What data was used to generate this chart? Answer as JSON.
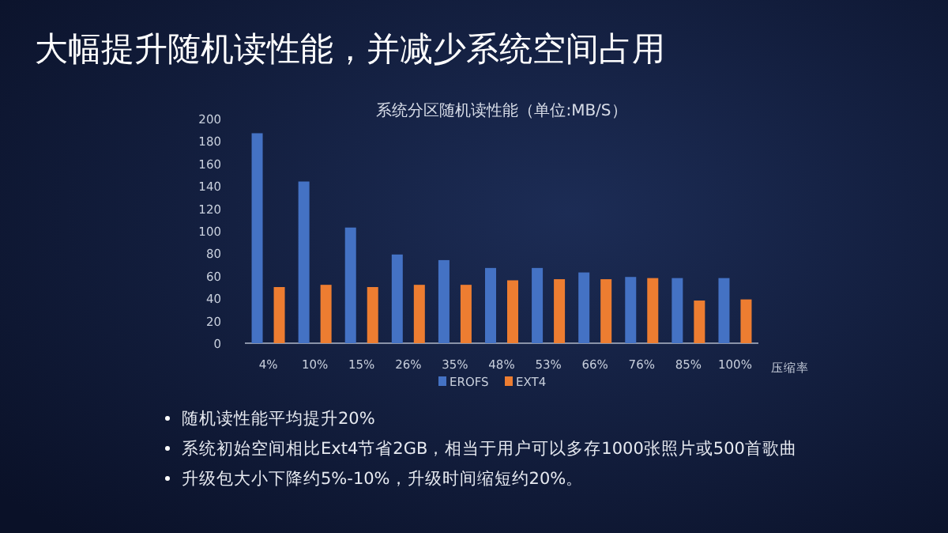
{
  "chart_data": {
    "type": "bar",
    "title": "大幅提升随机读性能，并减少系统空间占用",
    "subtitle": "系统分区随机读性能（单位:MB/S）",
    "xlabel": "压缩率",
    "categories": [
      "4%",
      "10%",
      "15%",
      "26%",
      "35%",
      "48%",
      "53%",
      "66%",
      "76%",
      "85%",
      "100%"
    ],
    "series": [
      {
        "name": "EROFS",
        "color": "#4472c4",
        "values": [
          187,
          144,
          103,
          79,
          74,
          67,
          67,
          63,
          59,
          58,
          58
        ]
      },
      {
        "name": "EXT4",
        "color": "#ed7d31",
        "values": [
          50,
          52,
          50,
          52,
          52,
          56,
          57,
          57,
          58,
          38,
          39
        ]
      }
    ],
    "ylim": [
      0,
      200
    ],
    "yticks": [
      0,
      20,
      40,
      60,
      80,
      100,
      120,
      140,
      160,
      180,
      200
    ],
    "grid": false,
    "legend": "bottom",
    "annotations": [
      "随机读性能平均提升20%",
      "系统初始空间相比Ext4节省2GB，相当于用户可以多存1000张照片或500首歌曲",
      "升级包大小下降约5%-10%，升级时间缩短约20%。"
    ]
  }
}
